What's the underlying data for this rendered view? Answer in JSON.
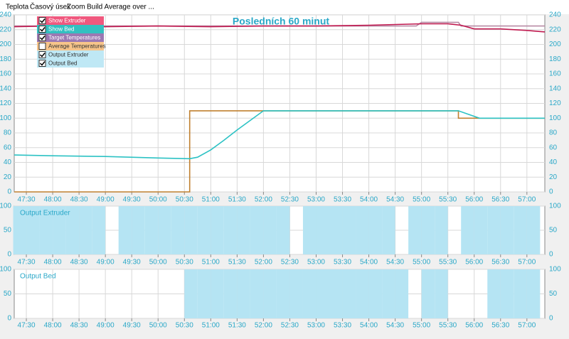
{
  "menu": [
    "Teplota",
    "Časový úsek",
    "Zoom",
    "Build Average over ..."
  ],
  "legend": [
    {
      "label": "Show Extruder",
      "color": "#f0587e",
      "checked": true
    },
    {
      "label": "Show Bed",
      "color": "#33c0c0",
      "checked": true
    },
    {
      "label": "Target Temperatures",
      "color": "#9b78b3",
      "checked": true
    },
    {
      "label": "Average Temperatures",
      "color": "#f7c48a",
      "checked": false
    },
    {
      "label": "Output Extruder",
      "color": "#bfe8f5",
      "checked": true
    },
    {
      "label": "Output Bed",
      "color": "#bfe8f5",
      "checked": true
    }
  ],
  "chart_data": [
    {
      "type": "line",
      "title": "Posledních 60 minut",
      "grid": true,
      "xlim": [
        47.27,
        57.34
      ],
      "xticks": [
        {
          "value": 47.5,
          "label": "47:30"
        },
        {
          "value": 48,
          "label": "48:00"
        },
        {
          "value": 48.5,
          "label": "48:30"
        },
        {
          "value": 49,
          "label": "49:00"
        },
        {
          "value": 49.5,
          "label": "49:30"
        },
        {
          "value": 50,
          "label": "50:00"
        },
        {
          "value": 50.5,
          "label": "50:30"
        },
        {
          "value": 51,
          "label": "51:00"
        },
        {
          "value": 51.5,
          "label": "51:30"
        },
        {
          "value": 52,
          "label": "52:00"
        },
        {
          "value": 52.5,
          "label": "52:30"
        },
        {
          "value": 53,
          "label": "53:00"
        },
        {
          "value": 53.5,
          "label": "53:30"
        },
        {
          "value": 54,
          "label": "54:00"
        },
        {
          "value": 54.5,
          "label": "54:30"
        },
        {
          "value": 55,
          "label": "55:00"
        },
        {
          "value": 55.5,
          "label": "55:30"
        },
        {
          "value": 56,
          "label": "56:00"
        },
        {
          "value": 56.5,
          "label": "56:30"
        },
        {
          "value": 57,
          "label": "57:00"
        }
      ],
      "ylim": [
        0,
        240
      ],
      "yticks": [
        0,
        20,
        40,
        60,
        80,
        100,
        120,
        140,
        160,
        180,
        200,
        220,
        240
      ],
      "series": [
        {
          "color": "#b88aa5",
          "x": [
            47.27,
            54.9,
            55.0,
            55.7,
            55.75,
            57.34
          ],
          "values": [
            225,
            225,
            230,
            230,
            225,
            225
          ]
        },
        {
          "color": "#c0194f",
          "x": [
            47.27,
            48,
            49,
            50,
            51,
            52,
            53,
            54,
            55,
            55.5,
            55.75,
            56,
            56.5,
            57,
            57.34
          ],
          "values": [
            224,
            225,
            224,
            225,
            224,
            225,
            225,
            226,
            228,
            228,
            226,
            221,
            221,
            219,
            217
          ]
        },
        {
          "color": "#c08030",
          "x": [
            47.27,
            50.6,
            50.6,
            55.7,
            55.7,
            57.34
          ],
          "values": [
            0,
            0,
            110,
            110,
            100,
            100
          ]
        },
        {
          "color": "#2cc2c4",
          "x": [
            47.27,
            48,
            49,
            50,
            50.6,
            50.75,
            51,
            51.25,
            51.5,
            51.75,
            52,
            53,
            54,
            55,
            55.7,
            56.1,
            57.34
          ],
          "values": [
            50,
            49,
            48,
            46,
            45,
            47,
            57,
            70,
            84,
            97,
            110,
            110,
            110,
            110,
            110,
            100,
            100
          ]
        }
      ]
    },
    {
      "type": "bar",
      "title": "Output Extruder",
      "grid": true,
      "color": "#b5e4f3",
      "xlim": [
        47.27,
        57.34
      ],
      "xticks": [
        {
          "value": 47.5,
          "label": "47:30"
        },
        {
          "value": 48,
          "label": "48:00"
        },
        {
          "value": 48.5,
          "label": "48:30"
        },
        {
          "value": 49,
          "label": "49:00"
        },
        {
          "value": 49.5,
          "label": "49:30"
        },
        {
          "value": 50,
          "label": "50:00"
        },
        {
          "value": 50.5,
          "label": "50:30"
        },
        {
          "value": 51,
          "label": "51:00"
        },
        {
          "value": 51.5,
          "label": "51:30"
        },
        {
          "value": 52,
          "label": "52:00"
        },
        {
          "value": 52.5,
          "label": "52:30"
        },
        {
          "value": 53,
          "label": "53:00"
        },
        {
          "value": 53.5,
          "label": "53:30"
        },
        {
          "value": 54,
          "label": "54:00"
        },
        {
          "value": 54.5,
          "label": "54:30"
        },
        {
          "value": 55,
          "label": "55:00"
        },
        {
          "value": 55.5,
          "label": "55:30"
        },
        {
          "value": 56,
          "label": "56:00"
        },
        {
          "value": 56.5,
          "label": "56:30"
        },
        {
          "value": 57,
          "label": "57:00"
        }
      ],
      "ylim": [
        0,
        100
      ],
      "yticks": [
        0,
        50,
        100
      ],
      "x": [
        47.375,
        47.625,
        47.875,
        48.125,
        48.375,
        48.625,
        48.875,
        49.125,
        49.375,
        49.625,
        49.875,
        50.125,
        50.375,
        50.625,
        50.875,
        51.125,
        51.375,
        51.625,
        51.875,
        52.125,
        52.375,
        52.625,
        52.875,
        53.125,
        53.375,
        53.625,
        53.875,
        54.125,
        54.375,
        54.625,
        54.875,
        55.125,
        55.375,
        55.625,
        55.875,
        56.125,
        56.375,
        56.625,
        56.875,
        57.125
      ],
      "values": [
        100,
        100,
        100,
        100,
        100,
        100,
        100,
        0,
        100,
        100,
        100,
        100,
        100,
        100,
        100,
        100,
        100,
        100,
        100,
        100,
        100,
        0,
        100,
        100,
        100,
        100,
        100,
        100,
        100,
        0,
        100,
        100,
        100,
        0,
        100,
        100,
        100,
        100,
        100,
        100
      ]
    },
    {
      "type": "bar",
      "title": "Output Bed",
      "grid": true,
      "color": "#b5e4f3",
      "xlim": [
        47.27,
        57.34
      ],
      "xticks": [
        {
          "value": 47.5,
          "label": "47:30"
        },
        {
          "value": 48,
          "label": "48:00"
        },
        {
          "value": 48.5,
          "label": "48:30"
        },
        {
          "value": 49,
          "label": "49:00"
        },
        {
          "value": 49.5,
          "label": "49:30"
        },
        {
          "value": 50,
          "label": "50:00"
        },
        {
          "value": 50.5,
          "label": "50:30"
        },
        {
          "value": 51,
          "label": "51:00"
        },
        {
          "value": 51.5,
          "label": "51:30"
        },
        {
          "value": 52,
          "label": "52:00"
        },
        {
          "value": 52.5,
          "label": "52:30"
        },
        {
          "value": 53,
          "label": "53:00"
        },
        {
          "value": 53.5,
          "label": "53:30"
        },
        {
          "value": 54,
          "label": "54:00"
        },
        {
          "value": 54.5,
          "label": "54:30"
        },
        {
          "value": 55,
          "label": "55:00"
        },
        {
          "value": 55.5,
          "label": "55:30"
        },
        {
          "value": 56,
          "label": "56:00"
        },
        {
          "value": 56.5,
          "label": "56:30"
        },
        {
          "value": 57,
          "label": "57:00"
        }
      ],
      "ylim": [
        0,
        100
      ],
      "yticks": [
        0,
        50,
        100
      ],
      "x": [
        47.375,
        47.625,
        47.875,
        48.125,
        48.375,
        48.625,
        48.875,
        49.125,
        49.375,
        49.625,
        49.875,
        50.125,
        50.375,
        50.625,
        50.875,
        51.125,
        51.375,
        51.625,
        51.875,
        52.125,
        52.375,
        52.625,
        52.875,
        53.125,
        53.375,
        53.625,
        53.875,
        54.125,
        54.375,
        54.625,
        54.875,
        55.125,
        55.375,
        55.625,
        55.875,
        56.125,
        56.375,
        56.625,
        56.875,
        57.125
      ],
      "values": [
        0,
        0,
        0,
        0,
        0,
        0,
        0,
        0,
        0,
        0,
        0,
        0,
        0,
        100,
        100,
        100,
        100,
        100,
        100,
        100,
        100,
        100,
        100,
        100,
        100,
        100,
        100,
        100,
        100,
        100,
        0,
        100,
        100,
        0,
        0,
        0,
        100,
        100,
        100,
        100
      ]
    }
  ]
}
